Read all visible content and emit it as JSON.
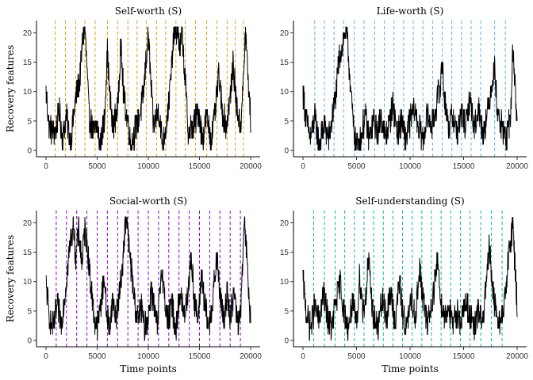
{
  "chart_data": [
    {
      "type": "line",
      "title": "Self-worth (S)",
      "xlabel": "",
      "ylabel": "Recovery features",
      "xlim": [
        0,
        20000
      ],
      "ylim": [
        0,
        21
      ],
      "xticks": [
        0,
        5000,
        10000,
        15000,
        20000
      ],
      "yticks": [
        0,
        5,
        10,
        15,
        20
      ],
      "vline_color": "#E69F00",
      "vlines": [
        900,
        1900,
        2900,
        3800,
        4800,
        6000,
        7000,
        8000,
        8900,
        9800,
        10800,
        11700,
        12700,
        13600,
        14600,
        15700,
        16700,
        17700,
        18500,
        19300
      ],
      "series": [
        {
          "color": "#000000",
          "anchors": [
            [
              0,
              10
            ],
            [
              300,
              4
            ],
            [
              900,
              3
            ],
            [
              1300,
              7
            ],
            [
              1600,
              2
            ],
            [
              2000,
              6
            ],
            [
              2400,
              1
            ],
            [
              2700,
              6
            ],
            [
              3000,
              10
            ],
            [
              3300,
              12
            ],
            [
              3600,
              19
            ],
            [
              3800,
              21
            ],
            [
              4000,
              14
            ],
            [
              4200,
              6
            ],
            [
              4600,
              3
            ],
            [
              5000,
              4
            ],
            [
              5300,
              1
            ],
            [
              5700,
              5
            ],
            [
              6000,
              17
            ],
            [
              6200,
              10
            ],
            [
              6500,
              4
            ],
            [
              7000,
              7
            ],
            [
              7300,
              18
            ],
            [
              7600,
              9
            ],
            [
              8000,
              5
            ],
            [
              8300,
              1
            ],
            [
              8800,
              4
            ],
            [
              9300,
              7
            ],
            [
              9600,
              11
            ],
            [
              9800,
              16
            ],
            [
              10000,
              20
            ],
            [
              10200,
              13
            ],
            [
              10500,
              4
            ],
            [
              11000,
              7
            ],
            [
              11400,
              1
            ],
            [
              11800,
              5
            ],
            [
              12200,
              12
            ],
            [
              12500,
              20
            ],
            [
              12800,
              21
            ],
            [
              13100,
              17
            ],
            [
              13300,
              20
            ],
            [
              13600,
              12
            ],
            [
              13900,
              3
            ],
            [
              14400,
              4
            ],
            [
              14900,
              7
            ],
            [
              15300,
              2
            ],
            [
              15700,
              6
            ],
            [
              16100,
              2
            ],
            [
              16500,
              6
            ],
            [
              16900,
              13
            ],
            [
              17200,
              7
            ],
            [
              17600,
              4
            ],
            [
              18000,
              9
            ],
            [
              18300,
              15
            ],
            [
              18600,
              8
            ],
            [
              19000,
              4
            ],
            [
              19300,
              12
            ],
            [
              19500,
              20
            ],
            [
              19700,
              14
            ],
            [
              20000,
              5
            ]
          ]
        }
      ]
    },
    {
      "type": "line",
      "title": "Life-worth (S)",
      "xlabel": "",
      "ylabel": "",
      "xlim": [
        0,
        20000
      ],
      "ylim": [
        0,
        21
      ],
      "xticks": [
        0,
        5000,
        10000,
        15000,
        20000
      ],
      "yticks": [
        0,
        5,
        10,
        15,
        20
      ],
      "vline_color": "#56B4E9",
      "vlines": [
        1100,
        2000,
        2900,
        3800,
        4800,
        5700,
        6700,
        7600,
        8500,
        9400,
        10300,
        11200,
        12100,
        13000,
        13900,
        14800,
        15700,
        16600,
        17900,
        18900
      ],
      "series": [
        {
          "color": "#000000",
          "anchors": [
            [
              0,
              10
            ],
            [
              300,
              5
            ],
            [
              700,
              2
            ],
            [
              1100,
              6
            ],
            [
              1500,
              1
            ],
            [
              2000,
              4
            ],
            [
              2400,
              2
            ],
            [
              2800,
              6
            ],
            [
              3100,
              10
            ],
            [
              3400,
              16
            ],
            [
              3700,
              18
            ],
            [
              4000,
              21
            ],
            [
              4200,
              17
            ],
            [
              4400,
              12
            ],
            [
              4700,
              4
            ],
            [
              5000,
              1
            ],
            [
              5400,
              2
            ],
            [
              5800,
              6
            ],
            [
              6200,
              2
            ],
            [
              6600,
              5
            ],
            [
              7000,
              3
            ],
            [
              7300,
              6
            ],
            [
              7700,
              2
            ],
            [
              8000,
              4
            ],
            [
              8400,
              8
            ],
            [
              8800,
              3
            ],
            [
              9200,
              5
            ],
            [
              9600,
              2
            ],
            [
              10000,
              5
            ],
            [
              10400,
              7
            ],
            [
              10800,
              4
            ],
            [
              11200,
              2
            ],
            [
              11600,
              6
            ],
            [
              12000,
              4
            ],
            [
              12400,
              7
            ],
            [
              12800,
              11
            ],
            [
              13000,
              15
            ],
            [
              13200,
              9
            ],
            [
              13600,
              4
            ],
            [
              14000,
              6
            ],
            [
              14400,
              3
            ],
            [
              14800,
              6
            ],
            [
              15200,
              4
            ],
            [
              15600,
              9
            ],
            [
              16000,
              4
            ],
            [
              16400,
              7
            ],
            [
              16800,
              3
            ],
            [
              17200,
              6
            ],
            [
              17600,
              11
            ],
            [
              17900,
              14
            ],
            [
              18200,
              6
            ],
            [
              18600,
              4
            ],
            [
              19000,
              2
            ],
            [
              19400,
              6
            ],
            [
              19600,
              17
            ],
            [
              19800,
              12
            ],
            [
              20000,
              4
            ]
          ]
        }
      ]
    },
    {
      "type": "line",
      "title": "Social-worth (S)",
      "xlabel": "Time points",
      "ylabel": "Recovery features",
      "xlim": [
        0,
        20000
      ],
      "ylim": [
        0,
        21
      ],
      "xticks": [
        0,
        5000,
        10000,
        15000,
        20000
      ],
      "yticks": [
        0,
        5,
        10,
        15,
        20
      ],
      "vline_color": "#9400D3",
      "vlines": [
        1000,
        2000,
        3000,
        4000,
        5000,
        6000,
        7000,
        8000,
        9000,
        10000,
        11000,
        12000,
        13000,
        14000,
        15000,
        16000,
        17000,
        18000,
        19000
      ],
      "series": [
        {
          "color": "#000000",
          "anchors": [
            [
              0,
              10
            ],
            [
              300,
              4
            ],
            [
              700,
              2
            ],
            [
              1100,
              6
            ],
            [
              1500,
              3
            ],
            [
              1800,
              7
            ],
            [
              2100,
              12
            ],
            [
              2400,
              17
            ],
            [
              2700,
              20
            ],
            [
              2900,
              14
            ],
            [
              3200,
              19
            ],
            [
              3500,
              13
            ],
            [
              3800,
              19
            ],
            [
              4100,
              15
            ],
            [
              4400,
              9
            ],
            [
              4700,
              4
            ],
            [
              5000,
              2
            ],
            [
              5400,
              7
            ],
            [
              5700,
              11
            ],
            [
              5900,
              5
            ],
            [
              6200,
              2
            ],
            [
              6500,
              7
            ],
            [
              6800,
              4
            ],
            [
              7200,
              8
            ],
            [
              7500,
              13
            ],
            [
              7700,
              19
            ],
            [
              7900,
              21
            ],
            [
              8100,
              16
            ],
            [
              8400,
              11
            ],
            [
              8700,
              6
            ],
            [
              9000,
              3
            ],
            [
              9300,
              6
            ],
            [
              9600,
              2
            ],
            [
              10000,
              4
            ],
            [
              10300,
              9
            ],
            [
              10600,
              5
            ],
            [
              10900,
              2
            ],
            [
              11300,
              13
            ],
            [
              11600,
              7
            ],
            [
              11900,
              3
            ],
            [
              12300,
              6
            ],
            [
              12700,
              2
            ],
            [
              13100,
              8
            ],
            [
              13500,
              4
            ],
            [
              13900,
              9
            ],
            [
              14200,
              14
            ],
            [
              14500,
              7
            ],
            [
              14900,
              3
            ],
            [
              15200,
              12
            ],
            [
              15500,
              6
            ],
            [
              15900,
              2
            ],
            [
              16300,
              7
            ],
            [
              16700,
              14
            ],
            [
              17000,
              8
            ],
            [
              17400,
              3
            ],
            [
              17700,
              9
            ],
            [
              18000,
              4
            ],
            [
              18400,
              8
            ],
            [
              18700,
              3
            ],
            [
              19000,
              4
            ],
            [
              19200,
              12
            ],
            [
              19400,
              20
            ],
            [
              19600,
              15
            ],
            [
              19800,
              8
            ],
            [
              20000,
              3
            ]
          ]
        }
      ]
    },
    {
      "type": "line",
      "title": "Self-understanding (S)",
      "xlabel": "Time points",
      "ylabel": "",
      "xlim": [
        0,
        20000
      ],
      "ylim": [
        0,
        21
      ],
      "xticks": [
        0,
        5000,
        10000,
        15000,
        20000
      ],
      "yticks": [
        0,
        5,
        10,
        15,
        20
      ],
      "vline_color": "#00C49A",
      "vlines": [
        1000,
        2000,
        3000,
        3900,
        4800,
        5700,
        6600,
        7500,
        8400,
        9300,
        10200,
        11100,
        12000,
        12900,
        13800,
        14700,
        15600,
        16600,
        17600,
        18600
      ],
      "series": [
        {
          "color": "#000000",
          "anchors": [
            [
              0,
              10
            ],
            [
              300,
              5
            ],
            [
              700,
              2
            ],
            [
              1100,
              6
            ],
            [
              1500,
              3
            ],
            [
              1900,
              8
            ],
            [
              2300,
              4
            ],
            [
              2700,
              2
            ],
            [
              3100,
              7
            ],
            [
              3500,
              10
            ],
            [
              3800,
              5
            ],
            [
              4200,
              2
            ],
            [
              4600,
              6
            ],
            [
              5000,
              3
            ],
            [
              5300,
              11
            ],
            [
              5600,
              5
            ],
            [
              5900,
              8
            ],
            [
              6100,
              14
            ],
            [
              6300,
              9
            ],
            [
              6600,
              4
            ],
            [
              7000,
              2
            ],
            [
              7400,
              7
            ],
            [
              7800,
              4
            ],
            [
              8200,
              8
            ],
            [
              8600,
              3
            ],
            [
              9000,
              10
            ],
            [
              9300,
              5
            ],
            [
              9700,
              2
            ],
            [
              10100,
              7
            ],
            [
              10500,
              4
            ],
            [
              10900,
              12
            ],
            [
              11200,
              7
            ],
            [
              11600,
              3
            ],
            [
              12000,
              6
            ],
            [
              12400,
              11
            ],
            [
              12600,
              14
            ],
            [
              12800,
              8
            ],
            [
              13200,
              4
            ],
            [
              13600,
              6
            ],
            [
              14000,
              2
            ],
            [
              14400,
              5
            ],
            [
              14800,
              3
            ],
            [
              15200,
              7
            ],
            [
              15600,
              4
            ],
            [
              16000,
              2
            ],
            [
              16400,
              5
            ],
            [
              16800,
              3
            ],
            [
              17100,
              9
            ],
            [
              17400,
              16
            ],
            [
              17600,
              11
            ],
            [
              17900,
              6
            ],
            [
              18200,
              4
            ],
            [
              18500,
              3
            ],
            [
              18800,
              6
            ],
            [
              19100,
              12
            ],
            [
              19400,
              17
            ],
            [
              19600,
              20
            ],
            [
              19800,
              13
            ],
            [
              20000,
              6
            ]
          ]
        }
      ]
    }
  ]
}
